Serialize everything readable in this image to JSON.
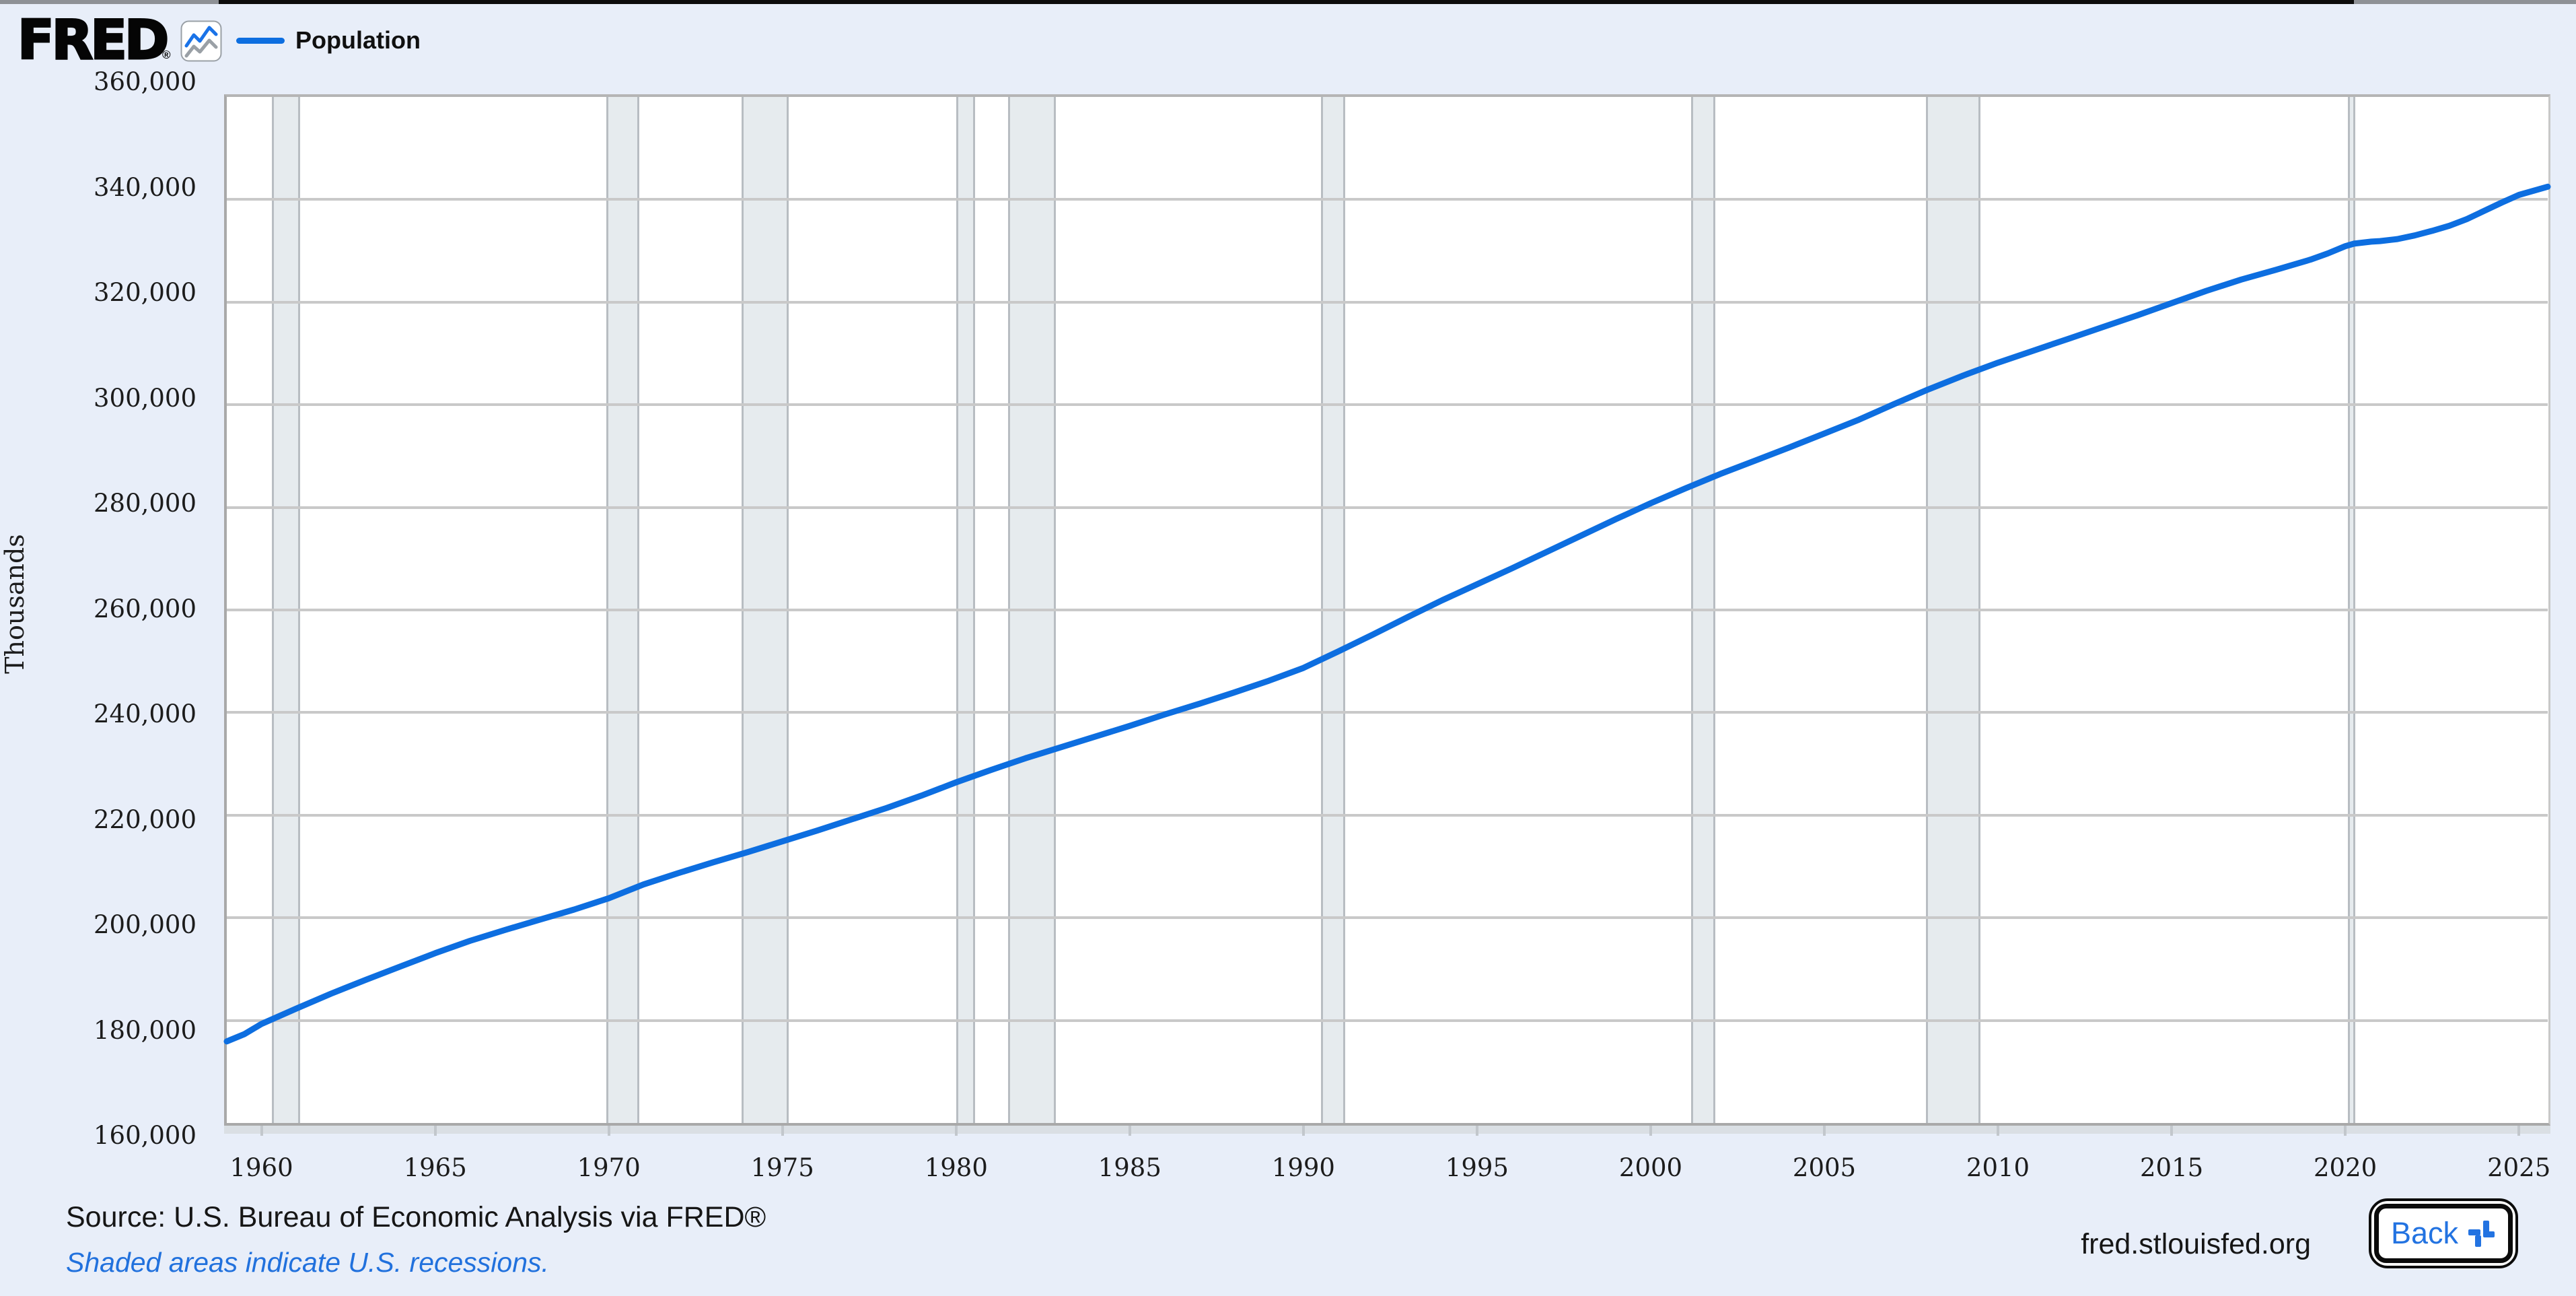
{
  "page": {
    "background": "#e8eef9"
  },
  "header": {
    "logo_text": "FRED",
    "registered_mark": "®",
    "legend": {
      "label": "Population",
      "swatch_color": "#0d6ee0"
    }
  },
  "chart_data": {
    "type": "line",
    "title": "",
    "ylabel": "Thousands",
    "xlabel": "",
    "legend_position": "top-left",
    "grid": "horizontal",
    "x_domain": [
      1959.0,
      2025.83
    ],
    "ylim": [
      160000,
      360000
    ],
    "y_ticks": [
      "360,000",
      "340,000",
      "320,000",
      "300,000",
      "280,000",
      "260,000",
      "240,000",
      "220,000",
      "200,000",
      "180,000",
      "160,000"
    ],
    "x_ticks": [
      "1960",
      "1965",
      "1970",
      "1975",
      "1980",
      "1985",
      "1990",
      "1995",
      "2000",
      "2005",
      "2010",
      "2015",
      "2020",
      "2025"
    ],
    "recessions_note": "shaded vertical bands are U.S. recessions (start/end in decimal years)",
    "recessions": [
      [
        1960.29,
        1961.12
      ],
      [
        1969.92,
        1970.87
      ],
      [
        1973.83,
        1975.17
      ],
      [
        1980.0,
        1980.54
      ],
      [
        1981.5,
        1982.87
      ],
      [
        1990.5,
        1991.21
      ],
      [
        2001.17,
        2001.87
      ],
      [
        2007.92,
        2009.5
      ],
      [
        2020.08,
        2020.29
      ]
    ],
    "series": [
      {
        "name": "Population",
        "units": "Thousands",
        "color": "#0d6ee0",
        "points": [
          [
            1959,
            175900
          ],
          [
            1959.5,
            177300
          ],
          [
            1960,
            179300
          ],
          [
            1961,
            182300
          ],
          [
            1962,
            185200
          ],
          [
            1963,
            187900
          ],
          [
            1964,
            190500
          ],
          [
            1965,
            193100
          ],
          [
            1966,
            195500
          ],
          [
            1967,
            197600
          ],
          [
            1968,
            199600
          ],
          [
            1969,
            201600
          ],
          [
            1970,
            203800
          ],
          [
            1971,
            206500
          ],
          [
            1972,
            208700
          ],
          [
            1973,
            210800
          ],
          [
            1974,
            212800
          ],
          [
            1975,
            214900
          ],
          [
            1976,
            217000
          ],
          [
            1977,
            219200
          ],
          [
            1978,
            221400
          ],
          [
            1979,
            223800
          ],
          [
            1980,
            226400
          ],
          [
            1981,
            228800
          ],
          [
            1982,
            231100
          ],
          [
            1983,
            233200
          ],
          [
            1984,
            235300
          ],
          [
            1985,
            237400
          ],
          [
            1986,
            239600
          ],
          [
            1987,
            241700
          ],
          [
            1988,
            243900
          ],
          [
            1989,
            246200
          ],
          [
            1990,
            248700
          ],
          [
            1991,
            251900
          ],
          [
            1992,
            255200
          ],
          [
            1993,
            258600
          ],
          [
            1994,
            261900
          ],
          [
            1995,
            265000
          ],
          [
            1996,
            268100
          ],
          [
            1997,
            271300
          ],
          [
            1998,
            274500
          ],
          [
            1999,
            277700
          ],
          [
            2000,
            280800
          ],
          [
            2001,
            283700
          ],
          [
            2002,
            286500
          ],
          [
            2003,
            289100
          ],
          [
            2004,
            291700
          ],
          [
            2005,
            294400
          ],
          [
            2006,
            297100
          ],
          [
            2007,
            300100
          ],
          [
            2008,
            303000
          ],
          [
            2009,
            305700
          ],
          [
            2010,
            308200
          ],
          [
            2011,
            310500
          ],
          [
            2012,
            312800
          ],
          [
            2013,
            315100
          ],
          [
            2014,
            317400
          ],
          [
            2015,
            319800
          ],
          [
            2016,
            322200
          ],
          [
            2017,
            324400
          ],
          [
            2018,
            326300
          ],
          [
            2019,
            328300
          ],
          [
            2019.5,
            329500
          ],
          [
            2020,
            330900
          ],
          [
            2020.25,
            331400
          ],
          [
            2020.75,
            331800
          ],
          [
            2021,
            331900
          ],
          [
            2021.5,
            332300
          ],
          [
            2022,
            333000
          ],
          [
            2022.5,
            333900
          ],
          [
            2023,
            334900
          ],
          [
            2023.5,
            336200
          ],
          [
            2024,
            337800
          ],
          [
            2024.5,
            339400
          ],
          [
            2025,
            340900
          ],
          [
            2025.83,
            342500
          ]
        ]
      }
    ],
    "colors": {
      "line": "#0d6ee0",
      "gridline": "#c9c9c9",
      "recession_fill": "#e6ebee",
      "recession_edge": "#b8bdc2",
      "plot_background": "#ffffff"
    }
  },
  "footer": {
    "source": "Source: U.S. Bureau of Economic Analysis via FRED®",
    "note": "Shaded areas indicate U.S. recessions.",
    "note_color": "#2171dd",
    "site": "fred.stlouisfed.org",
    "back_label": "Back"
  }
}
